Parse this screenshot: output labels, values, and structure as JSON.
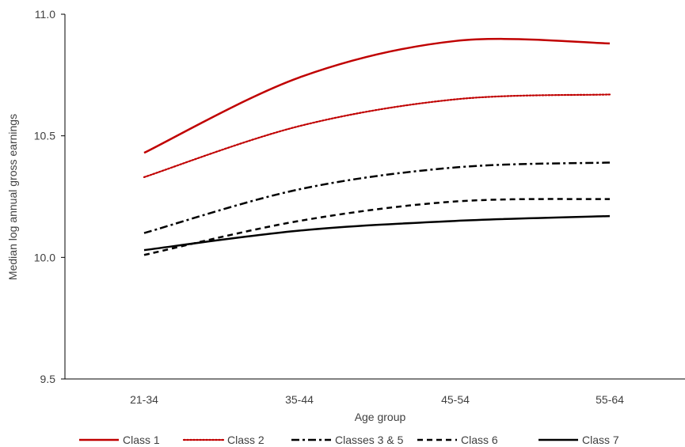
{
  "chart_data": {
    "type": "line",
    "title": "",
    "xlabel": "Age group",
    "ylabel": "Median log annual gross earnings",
    "categories": [
      "21-34",
      "35-44",
      "45-54",
      "55-64"
    ],
    "ylim": [
      9.5,
      11.0
    ],
    "y_ticks": [
      "9.5",
      "10.0",
      "10.5",
      "11.0"
    ],
    "grid": false,
    "legend_position": "bottom",
    "series": [
      {
        "name": "Class 1",
        "values": [
          10.43,
          10.74,
          10.89,
          10.88
        ],
        "color": "#C00000",
        "dash": "solid"
      },
      {
        "name": "Class 2",
        "values": [
          10.33,
          10.54,
          10.65,
          10.67
        ],
        "color": "#C00000",
        "dash": "dotted"
      },
      {
        "name": "Classes 3 & 5",
        "values": [
          10.1,
          10.28,
          10.37,
          10.39
        ],
        "color": "#000000",
        "dash": "dashdot"
      },
      {
        "name": "Class 6",
        "values": [
          10.01,
          10.15,
          10.23,
          10.24
        ],
        "color": "#000000",
        "dash": "dashed"
      },
      {
        "name": "Class 7",
        "values": [
          10.03,
          10.11,
          10.15,
          10.17
        ],
        "color": "#000000",
        "dash": "solid"
      }
    ]
  }
}
